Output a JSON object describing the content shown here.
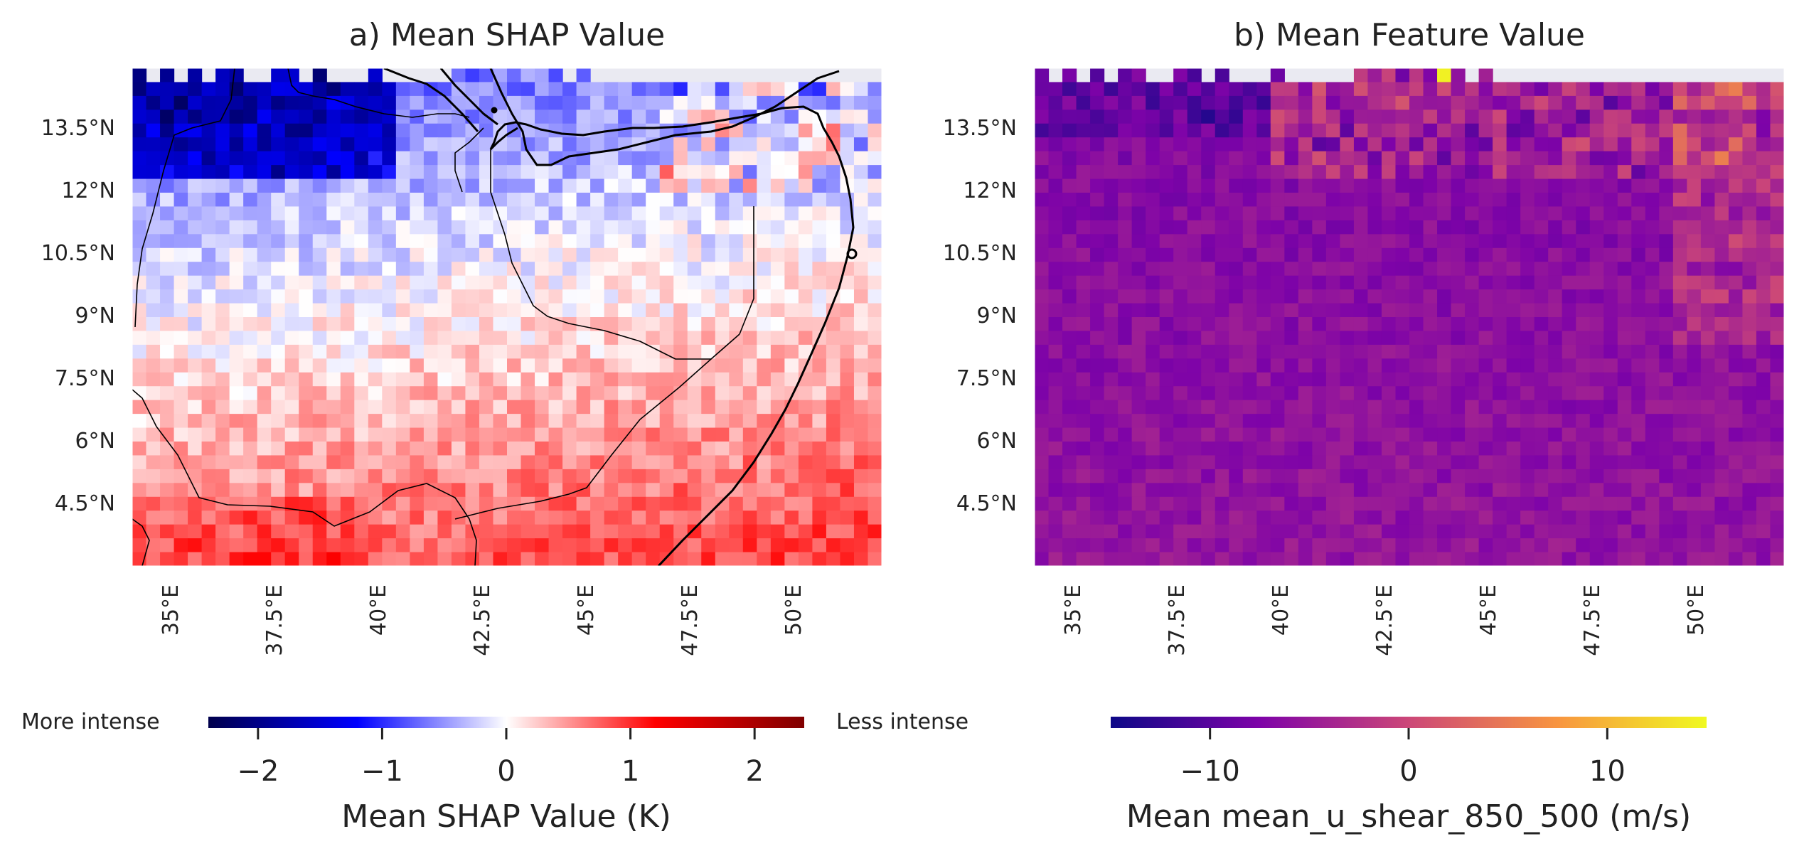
{
  "panels": [
    {
      "id": "shap",
      "title": "a) Mean SHAP Value",
      "lat_ticks": [
        "13.5°N",
        "12°N",
        "10.5°N",
        "9°N",
        "7.5°N",
        "6°N",
        "4.5°N"
      ],
      "lon_ticks": [
        "35°E",
        "37.5°E",
        "40°E",
        "42.5°E",
        "45°E",
        "47.5°E",
        "50°E"
      ],
      "colorbar": {
        "colormap": "seismic",
        "colors": [
          "#00004c",
          "#0000ff",
          "#ffffff",
          "#ff0000",
          "#800000"
        ],
        "min": -2.4,
        "max": 2.4,
        "ticks": [
          "−2",
          "−1",
          "0",
          "1",
          "2"
        ],
        "tick_values": [
          -2,
          -1,
          0,
          1,
          2
        ],
        "label": "Mean SHAP Value (K)",
        "left_annotation": "More intense",
        "right_annotation": "Less intense"
      }
    },
    {
      "id": "feature",
      "title": "b) Mean Feature Value",
      "lat_ticks": [
        "13.5°N",
        "12°N",
        "10.5°N",
        "9°N",
        "7.5°N",
        "6°N",
        "4.5°N"
      ],
      "lon_ticks": [
        "35°E",
        "37.5°E",
        "40°E",
        "42.5°E",
        "45°E",
        "47.5°E",
        "50°E"
      ],
      "colorbar": {
        "colormap": "plasma",
        "colors": [
          "#0d0887",
          "#7e03a8",
          "#cc4778",
          "#f89540",
          "#f0f921"
        ],
        "min": -15,
        "max": 15,
        "ticks": [
          "−10",
          "0",
          "10"
        ],
        "tick_values": [
          -10,
          0,
          10
        ],
        "label": "Mean mean_u_shear_850_500 (m/s)"
      }
    }
  ],
  "map_extent": {
    "lon": [
      34.0,
      52.0
    ],
    "lat": [
      2.5,
      14.5
    ]
  },
  "missing_color": "#eaeaf2"
}
